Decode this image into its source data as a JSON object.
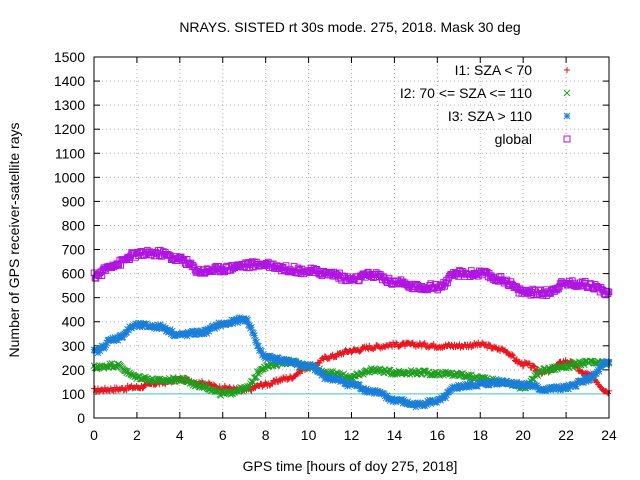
{
  "chart_data": {
    "type": "scatter",
    "title": "NRAYS. SISTED rt 30s mode. 275, 2018. Mask 30 deg",
    "xlabel": "GPS time [hours of doy 275, 2018]",
    "ylabel": "Number of GPS receiver-satellite rays",
    "xlim": [
      0,
      24
    ],
    "ylim": [
      0,
      1500
    ],
    "x_ticks": [
      0,
      2,
      4,
      6,
      8,
      10,
      12,
      14,
      16,
      18,
      20,
      22,
      24
    ],
    "y_ticks": [
      0,
      100,
      200,
      300,
      400,
      500,
      600,
      700,
      800,
      900,
      1000,
      1100,
      1200,
      1300,
      1400,
      1500
    ],
    "grid": true,
    "legend_position": "top-right",
    "reference_line": {
      "y": 100,
      "color": "#3ec9c9"
    },
    "series": [
      {
        "name": "I1: SZA < 70",
        "marker": "+",
        "color": "#e8141e",
        "x": [
          0,
          1,
          2,
          3,
          4,
          5,
          6,
          7,
          8,
          9,
          10,
          11,
          12,
          13,
          14,
          15,
          16,
          17,
          18,
          19,
          20,
          21,
          22,
          23,
          24
        ],
        "y": [
          115,
          120,
          128,
          145,
          160,
          145,
          125,
          115,
          140,
          165,
          210,
          255,
          280,
          295,
          305,
          305,
          300,
          300,
          305,
          285,
          225,
          190,
          235,
          180,
          110
        ]
      },
      {
        "name": "I2: 70 <= SZA <= 110",
        "marker": "x",
        "color": "#1e9e1e",
        "x": [
          0,
          1,
          2,
          3,
          4,
          5,
          6,
          7,
          8,
          9,
          10,
          11,
          12,
          13,
          14,
          15,
          16,
          17,
          18,
          19,
          20,
          21,
          22,
          23,
          24
        ],
        "y": [
          210,
          220,
          170,
          155,
          160,
          135,
          100,
          120,
          215,
          235,
          215,
          185,
          170,
          200,
          190,
          190,
          185,
          180,
          165,
          150,
          130,
          200,
          215,
          230,
          225
        ]
      },
      {
        "name": "I3: SZA > 110",
        "marker": "*",
        "color": "#1a7fd9",
        "x": [
          0,
          1,
          2,
          3,
          4,
          5,
          6,
          7,
          8,
          9,
          10,
          11,
          12,
          13,
          14,
          15,
          16,
          17,
          18,
          19,
          20,
          21,
          22,
          23,
          24
        ],
        "y": [
          275,
          330,
          385,
          380,
          345,
          355,
          390,
          410,
          255,
          235,
          215,
          165,
          140,
          110,
          75,
          55,
          70,
          130,
          140,
          150,
          140,
          120,
          125,
          160,
          230
        ]
      },
      {
        "name": "global",
        "marker": "square",
        "color": "#b014e0",
        "x": [
          0,
          1,
          2,
          3,
          4,
          5,
          6,
          7,
          8,
          9,
          10,
          11,
          12,
          13,
          14,
          15,
          16,
          17,
          18,
          19,
          20,
          21,
          22,
          23,
          24
        ],
        "y": [
          590,
          640,
          680,
          685,
          660,
          610,
          620,
          635,
          640,
          620,
          610,
          600,
          575,
          595,
          565,
          545,
          545,
          600,
          600,
          575,
          525,
          520,
          560,
          555,
          520
        ]
      }
    ]
  }
}
